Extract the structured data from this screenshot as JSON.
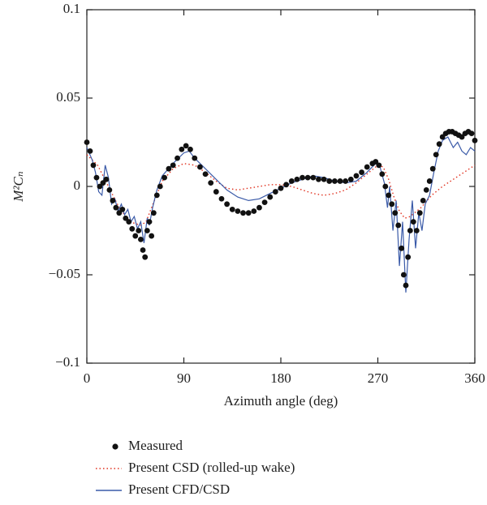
{
  "chart_data": {
    "type": "line",
    "xlabel": "Azimuth angle (deg)",
    "ylabel": "M²Cₙ",
    "xlim": [
      0,
      360
    ],
    "xticks": [
      0,
      90,
      180,
      270,
      360
    ],
    "ylim": [
      -0.1,
      0.1
    ],
    "yticks": [
      {
        "value": -0.1,
        "label": "−0.1"
      },
      {
        "value": -0.05,
        "label": "−0.05"
      },
      0,
      0.05,
      0.1
    ],
    "legend": "bottom",
    "series": [
      {
        "name": "Measured",
        "color": "#111111",
        "style": "markers",
        "x": [
          0,
          3,
          6,
          9,
          12,
          15,
          18,
          21,
          24,
          27,
          30,
          33,
          36,
          39,
          42,
          45,
          48,
          50,
          52,
          54,
          56,
          58,
          60,
          62,
          65,
          68,
          72,
          76,
          80,
          84,
          88,
          92,
          96,
          100,
          105,
          110,
          115,
          120,
          125,
          130,
          135,
          140,
          145,
          150,
          155,
          160,
          165,
          170,
          175,
          180,
          185,
          190,
          195,
          200,
          205,
          210,
          215,
          220,
          225,
          230,
          235,
          240,
          245,
          250,
          255,
          260,
          265,
          268,
          271,
          274,
          277,
          280,
          283,
          286,
          289,
          292,
          294,
          296,
          298,
          300,
          303,
          306,
          309,
          312,
          315,
          318,
          321,
          324,
          327,
          330,
          333,
          336,
          339,
          342,
          345,
          348,
          351,
          354,
          357,
          360
        ],
        "values": [
          0.025,
          0.02,
          0.012,
          0.005,
          0.0,
          0.002,
          0.004,
          -0.002,
          -0.008,
          -0.012,
          -0.015,
          -0.013,
          -0.018,
          -0.02,
          -0.024,
          -0.028,
          -0.025,
          -0.03,
          -0.036,
          -0.04,
          -0.025,
          -0.02,
          -0.028,
          -0.015,
          -0.005,
          0.0,
          0.005,
          0.01,
          0.012,
          0.016,
          0.021,
          0.023,
          0.021,
          0.016,
          0.011,
          0.007,
          0.002,
          -0.003,
          -0.007,
          -0.01,
          -0.013,
          -0.014,
          -0.015,
          -0.015,
          -0.014,
          -0.012,
          -0.009,
          -0.006,
          -0.003,
          -0.001,
          0.001,
          0.003,
          0.004,
          0.005,
          0.005,
          0.005,
          0.004,
          0.004,
          0.003,
          0.003,
          0.003,
          0.003,
          0.004,
          0.006,
          0.008,
          0.011,
          0.013,
          0.014,
          0.012,
          0.007,
          0.0,
          -0.005,
          -0.01,
          -0.015,
          -0.022,
          -0.035,
          -0.05,
          -0.056,
          -0.04,
          -0.025,
          -0.02,
          -0.025,
          -0.015,
          -0.008,
          -0.002,
          0.003,
          0.01,
          0.018,
          0.024,
          0.028,
          0.03,
          0.031,
          0.031,
          0.03,
          0.029,
          0.028,
          0.03,
          0.031,
          0.03,
          0.026
        ]
      },
      {
        "name": "Present CSD (rolled-up wake)",
        "color": "#e0301e",
        "style": "dotted",
        "x": [
          0,
          10,
          20,
          30,
          40,
          50,
          55,
          60,
          70,
          80,
          90,
          100,
          110,
          120,
          130,
          140,
          150,
          160,
          170,
          180,
          190,
          200,
          210,
          220,
          230,
          240,
          250,
          260,
          270,
          275,
          280,
          285,
          290,
          295,
          300,
          310,
          320,
          330,
          340,
          350,
          360
        ],
        "values": [
          0.018,
          0.012,
          0.0,
          -0.012,
          -0.02,
          -0.022,
          -0.02,
          -0.012,
          0.003,
          0.01,
          0.013,
          0.012,
          0.008,
          0.003,
          -0.001,
          -0.002,
          -0.001,
          0.0,
          0.001,
          0.001,
          0.0,
          -0.002,
          -0.004,
          -0.005,
          -0.004,
          -0.002,
          0.002,
          0.007,
          0.012,
          0.011,
          0.004,
          -0.006,
          -0.014,
          -0.018,
          -0.017,
          -0.012,
          -0.005,
          0.0,
          0.004,
          0.008,
          0.012
        ]
      },
      {
        "name": "Present CFD/CSD",
        "color": "#3a5aa8",
        "style": "solid",
        "x": [
          0,
          5,
          8,
          11,
          14,
          17,
          20,
          23,
          26,
          29,
          32,
          35,
          38,
          41,
          44,
          47,
          50,
          53,
          56,
          58,
          61,
          65,
          70,
          80,
          90,
          95,
          100,
          110,
          120,
          130,
          140,
          150,
          160,
          170,
          180,
          190,
          200,
          210,
          220,
          230,
          240,
          250,
          260,
          268,
          272,
          276,
          279,
          281,
          284,
          287,
          290,
          293,
          296,
          299,
          302,
          305,
          308,
          311,
          314,
          318,
          322,
          326,
          330,
          335,
          340,
          344,
          348,
          352,
          356,
          360
        ],
        "values": [
          0.022,
          0.015,
          0.008,
          -0.003,
          -0.005,
          0.012,
          0.005,
          -0.01,
          -0.007,
          -0.014,
          -0.01,
          -0.016,
          -0.013,
          -0.02,
          -0.017,
          -0.024,
          -0.02,
          -0.032,
          -0.018,
          -0.022,
          -0.012,
          -0.002,
          0.006,
          0.013,
          0.019,
          0.02,
          0.016,
          0.01,
          0.004,
          -0.002,
          -0.006,
          -0.008,
          -0.007,
          -0.004,
          -0.001,
          0.002,
          0.004,
          0.006,
          0.005,
          0.003,
          0.002,
          0.003,
          0.008,
          0.013,
          0.011,
          0.002,
          -0.012,
          0.0,
          -0.025,
          -0.008,
          -0.045,
          -0.02,
          -0.06,
          -0.03,
          -0.008,
          -0.035,
          -0.015,
          -0.025,
          -0.01,
          -0.005,
          0.008,
          0.02,
          0.026,
          0.028,
          0.022,
          0.025,
          0.02,
          0.018,
          0.022,
          0.02
        ]
      }
    ]
  }
}
